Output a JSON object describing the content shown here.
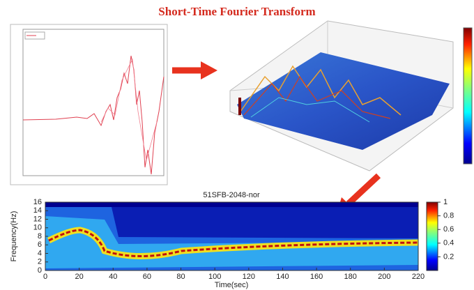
{
  "title": "Short-Time Fourier Transform",
  "spectrogram": {
    "type": "heatmap",
    "title": "51SFB-2048-nor",
    "xlabel": "Time(sec)",
    "ylabel": "Frequency(Hz)",
    "xlim": [
      0,
      220
    ],
    "xticks": [
      0,
      20,
      40,
      60,
      80,
      100,
      120,
      140,
      160,
      180,
      200,
      220
    ],
    "ylim": [
      0,
      16
    ],
    "yticks": [
      0,
      2,
      4,
      6,
      8,
      10,
      12,
      14,
      16
    ],
    "colorbar": {
      "lim": [
        0,
        1
      ],
      "ticks": [
        0.2,
        0.4,
        0.6,
        0.8,
        1
      ]
    }
  }
}
